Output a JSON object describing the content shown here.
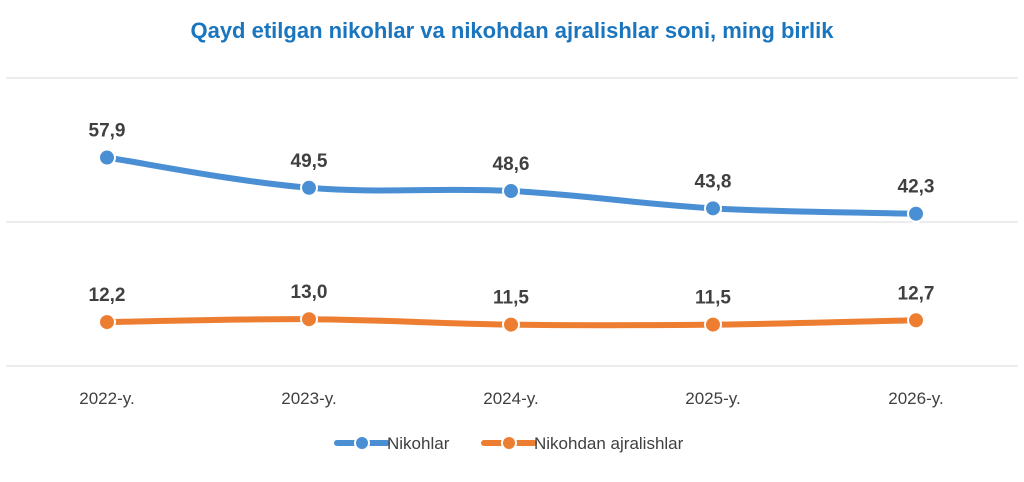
{
  "chart_data": {
    "type": "line",
    "title": "Qayd etilgan nikohlar va nikohdan ajralishlar soni, ming birlik",
    "categories": [
      "2022-y.",
      "2023-y.",
      "2024-y.",
      "2025-y.",
      "2026-y."
    ],
    "series": [
      {
        "name": "Nikohlar",
        "color": "#4a8fd4",
        "values": [
          57.9,
          49.5,
          48.6,
          43.8,
          42.3
        ],
        "labels": [
          "57,9",
          "49,5",
          "48,6",
          "43,8",
          "42,3"
        ]
      },
      {
        "name": "Nikohdan ajralishlar",
        "color": "#ec7d31",
        "values": [
          12.2,
          13.0,
          11.5,
          11.5,
          12.7
        ],
        "labels": [
          "12,2",
          "13,0",
          "11,5",
          "11,5",
          "12,7"
        ]
      }
    ],
    "ylim": [
      0,
      80
    ],
    "grid": true,
    "legend": "bottom-center"
  }
}
